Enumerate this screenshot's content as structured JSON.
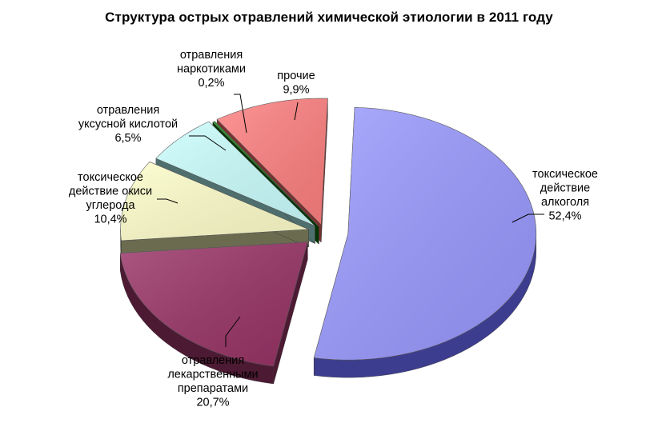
{
  "chart_data": {
    "type": "pie",
    "title": "Структура острых отравлений химической этиологии в 2011 году",
    "legend": "none",
    "slices": [
      {
        "label_lines": [
          "токсическое",
          "действие",
          "алкоголя"
        ],
        "value": 52.4,
        "value_label": "52,4%",
        "color": "#9999ff",
        "side_color": "#3d3d8f"
      },
      {
        "label_lines": [
          "отравления",
          "лекарственными",
          "препаратами"
        ],
        "value": 20.7,
        "value_label": "20,7%",
        "color": "#993366",
        "side_color": "#4d1a33"
      },
      {
        "label_lines": [
          "токсическое",
          "действие окиси",
          "углерода"
        ],
        "value": 10.4,
        "value_label": "10,4%",
        "color": "#ffffcc",
        "side_color": "#6b6b50"
      },
      {
        "label_lines": [
          "отравления",
          "уксусной кислотой"
        ],
        "value": 6.5,
        "value_label": "6,5%",
        "color": "#ccffff",
        "side_color": "#4f6e6e"
      },
      {
        "label_lines": [
          "отравления",
          "наркотиками"
        ],
        "value": 0.2,
        "value_label": "0,2%",
        "color": "#008000",
        "side_color": "#003300"
      },
      {
        "label_lines": [
          "прочие"
        ],
        "value": 9.9,
        "value_label": "9,9%",
        "color": "#ff8080",
        "side_color": "#7a3030"
      }
    ]
  }
}
